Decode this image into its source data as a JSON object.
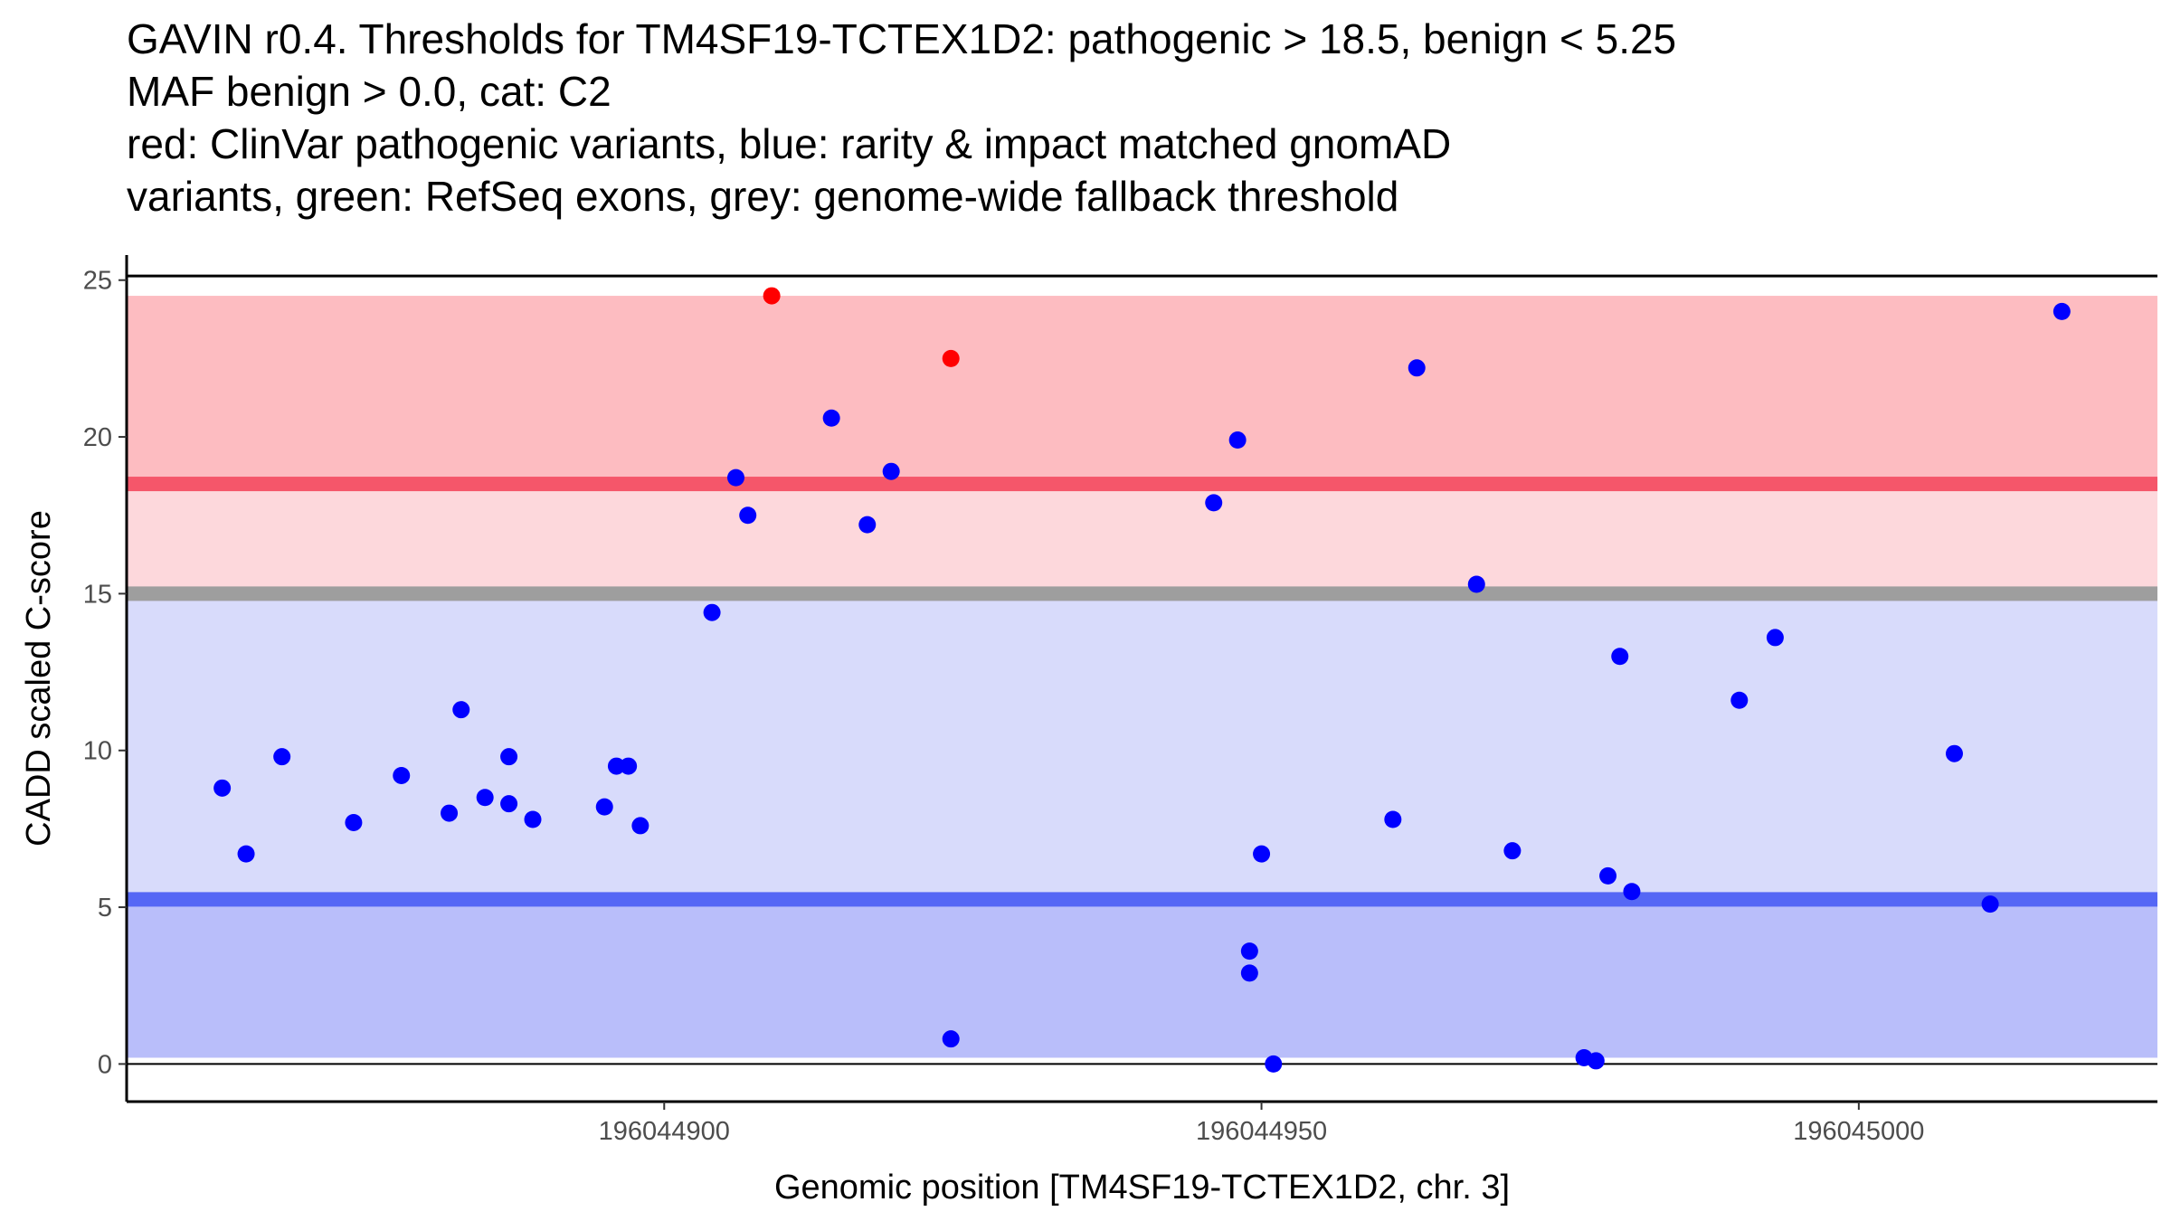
{
  "title_lines": [
    "GAVIN r0.4. Thresholds for TM4SF19-TCTEX1D2: pathogenic > 18.5, benign < 5.25",
    "MAF benign > 0.0, cat: C2",
    "red: ClinVar pathogenic variants, blue: rarity & impact matched gnomAD",
    "variants, green: RefSeq exons, grey: genome-wide fallback threshold"
  ],
  "chart_data": {
    "type": "scatter",
    "xlabel": "Genomic position [TM4SF19-TCTEX1D2, chr. 3]",
    "ylabel": "CADD scaled C-score",
    "xlim": [
      196044855,
      196045025
    ],
    "ylim": [
      -1.2,
      25.8
    ],
    "x_ticks": [
      196044900,
      196044950,
      196045000
    ],
    "x_tick_labels": [
      "196044900",
      "196044950",
      "196045000"
    ],
    "y_ticks": [
      0,
      5,
      10,
      15,
      20,
      25
    ],
    "y_tick_labels": [
      "0",
      "5",
      "10",
      "15",
      "20",
      "25"
    ],
    "thresholds": {
      "pathogenic": 18.5,
      "benign": 5.25,
      "fallback": 15.0,
      "max": 24.5,
      "min": 0.2
    },
    "colors": {
      "pathogenic_band": "#fdbcc1",
      "mid_upper_band": "#fdd8dc",
      "mid_lower_band": "#d8dbfb",
      "benign_band": "#b9befa",
      "pathogenic_line": "#f5566a",
      "fallback_line": "#9e9e9e",
      "benign_line": "#5567f5",
      "pathogenic_point": "#ff0000",
      "gnomad_point": "#0000ff"
    },
    "series": [
      {
        "name": "ClinVar pathogenic variants",
        "color": "#ff0000",
        "points": [
          {
            "x": 196044909,
            "y": 24.5
          },
          {
            "x": 196044924,
            "y": 22.5
          }
        ]
      },
      {
        "name": "rarity & impact matched gnomAD variants",
        "color": "#0000ff",
        "points": [
          {
            "x": 196044863,
            "y": 8.8
          },
          {
            "x": 196044865,
            "y": 6.7
          },
          {
            "x": 196044868,
            "y": 9.8
          },
          {
            "x": 196044874,
            "y": 7.7
          },
          {
            "x": 196044878,
            "y": 9.2
          },
          {
            "x": 196044882,
            "y": 8.0
          },
          {
            "x": 196044883,
            "y": 11.3
          },
          {
            "x": 196044885,
            "y": 8.5
          },
          {
            "x": 196044887,
            "y": 8.3
          },
          {
            "x": 196044887,
            "y": 9.8
          },
          {
            "x": 196044889,
            "y": 7.8
          },
          {
            "x": 196044895,
            "y": 8.2
          },
          {
            "x": 196044896,
            "y": 9.5
          },
          {
            "x": 196044897,
            "y": 9.5
          },
          {
            "x": 196044898,
            "y": 7.6
          },
          {
            "x": 196044904,
            "y": 14.4
          },
          {
            "x": 196044906,
            "y": 18.7
          },
          {
            "x": 196044907,
            "y": 17.5
          },
          {
            "x": 196044914,
            "y": 20.6
          },
          {
            "x": 196044917,
            "y": 17.2
          },
          {
            "x": 196044919,
            "y": 18.9
          },
          {
            "x": 196044924,
            "y": 0.8
          },
          {
            "x": 196044946,
            "y": 17.9
          },
          {
            "x": 196044948,
            "y": 19.9
          },
          {
            "x": 196044949,
            "y": 3.6
          },
          {
            "x": 196044949,
            "y": 2.9
          },
          {
            "x": 196044950,
            "y": 6.7
          },
          {
            "x": 196044951,
            "y": 0.0
          },
          {
            "x": 196044961,
            "y": 7.8
          },
          {
            "x": 196044963,
            "y": 22.2
          },
          {
            "x": 196044968,
            "y": 15.3
          },
          {
            "x": 196044971,
            "y": 6.8
          },
          {
            "x": 196044977,
            "y": 0.2
          },
          {
            "x": 196044978,
            "y": 0.1
          },
          {
            "x": 196044979,
            "y": 6.0
          },
          {
            "x": 196044980,
            "y": 13.0
          },
          {
            "x": 196044981,
            "y": 5.5
          },
          {
            "x": 196044990,
            "y": 11.6
          },
          {
            "x": 196044993,
            "y": 13.6
          },
          {
            "x": 196045008,
            "y": 9.9
          },
          {
            "x": 196045011,
            "y": 5.1
          },
          {
            "x": 196045017,
            "y": 24.0
          }
        ]
      }
    ]
  }
}
